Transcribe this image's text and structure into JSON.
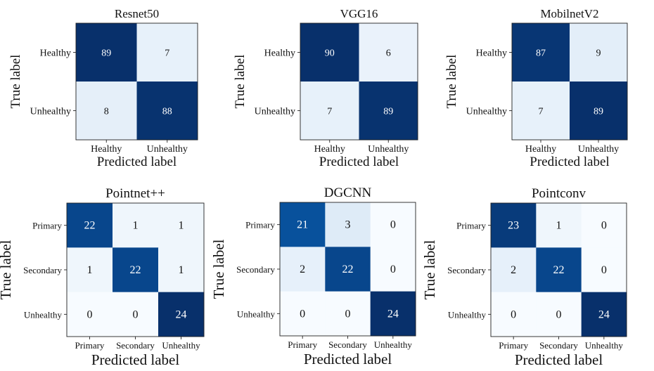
{
  "chart_data": [
    {
      "type": "heatmap",
      "title": "Resnet50",
      "xlabel": "Predicted label",
      "ylabel": "True label",
      "x_categories": [
        "Healthy",
        "Unhealthy"
      ],
      "y_categories": [
        "Healthy",
        "Unhealthy"
      ],
      "values": [
        [
          89,
          7
        ],
        [
          8,
          88
        ]
      ],
      "colormap": "Blues"
    },
    {
      "type": "heatmap",
      "title": "VGG16",
      "xlabel": "Predicted label",
      "ylabel": "True label",
      "x_categories": [
        "Healthy",
        "Unhealthy"
      ],
      "y_categories": [
        "Healthy",
        "Unhealthy"
      ],
      "values": [
        [
          90,
          6
        ],
        [
          7,
          89
        ]
      ],
      "colormap": "Blues"
    },
    {
      "type": "heatmap",
      "title": "MobilnetV2",
      "xlabel": "Predicted label",
      "ylabel": "True label",
      "x_categories": [
        "Healthy",
        "Unhealthy"
      ],
      "y_categories": [
        "Healthy",
        "Unhealthy"
      ],
      "values": [
        [
          87,
          9
        ],
        [
          7,
          89
        ]
      ],
      "colormap": "Blues"
    },
    {
      "type": "heatmap",
      "title": "Pointnet++",
      "xlabel": "Predicted label",
      "ylabel": "True label",
      "x_categories": [
        "Primary",
        "Secondary",
        "Unhealthy"
      ],
      "y_categories": [
        "Primary",
        "Secondary",
        "Unhealthy"
      ],
      "values": [
        [
          22,
          1,
          1
        ],
        [
          1,
          22,
          1
        ],
        [
          0,
          0,
          24
        ]
      ],
      "colormap": "Blues"
    },
    {
      "type": "heatmap",
      "title": "DGCNN",
      "xlabel": "Predicted label",
      "ylabel": "True label",
      "x_categories": [
        "Primary",
        "Secondary",
        "Unhealthy"
      ],
      "y_categories": [
        "Primary",
        "Secondary",
        "Unhealthy"
      ],
      "values": [
        [
          21,
          3,
          0
        ],
        [
          2,
          22,
          0
        ],
        [
          0,
          0,
          24
        ]
      ],
      "colormap": "Blues"
    },
    {
      "type": "heatmap",
      "title": "Pointconv",
      "xlabel": "Predicted label",
      "ylabel": "True label",
      "x_categories": [
        "Primary",
        "Secondary",
        "Unhealthy"
      ],
      "y_categories": [
        "Primary",
        "Secondary",
        "Unhealthy"
      ],
      "values": [
        [
          23,
          1,
          0
        ],
        [
          2,
          22,
          0
        ],
        [
          0,
          0,
          24
        ]
      ],
      "colormap": "Blues"
    }
  ]
}
